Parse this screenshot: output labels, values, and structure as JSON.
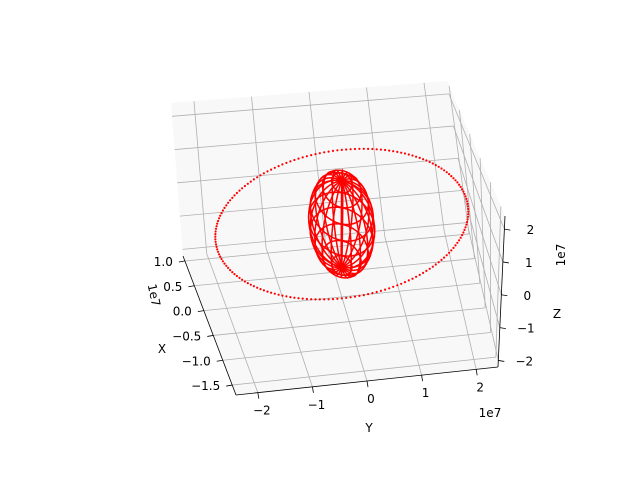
{
  "chart_data": {
    "type": "scatter",
    "projection": "3d",
    "grid": true,
    "axes": {
      "x": {
        "label": "X",
        "offset_text": "1e7",
        "range": [
          -1.7,
          1.1
        ],
        "ticks": [
          -1.5,
          -1.0,
          -0.5,
          0.0,
          0.5,
          1.0
        ],
        "tick_labels": [
          "−1.5",
          "−1.0",
          "−0.5",
          "0.0",
          "0.5",
          "1.0"
        ]
      },
      "y": {
        "label": "Y",
        "offset_text": "1e7",
        "range": [
          -2.4,
          2.4
        ],
        "ticks": [
          -2,
          -1,
          0,
          1,
          2
        ],
        "tick_labels": [
          "−2",
          "−1",
          "0",
          "1",
          "2"
        ]
      },
      "z": {
        "label": "Z",
        "offset_text": "1e7",
        "range": [
          -2.2,
          2.4
        ],
        "ticks": [
          -2,
          -1,
          0,
          1,
          2
        ],
        "tick_labels": [
          "−2",
          "−1",
          "0",
          "1",
          "2"
        ]
      }
    },
    "series": [
      {
        "kind": "scatter",
        "description_color": "red",
        "color": "#ff0000",
        "orbit": {
          "radius": 2.2,
          "center": [
            0,
            0,
            0
          ],
          "tilt_deg": 90,
          "points": 180
        }
      },
      {
        "kind": "wireframe-sphere",
        "color": "#ff0000",
        "sphere": {
          "radius": 0.64,
          "center": [
            0,
            0,
            0
          ],
          "meridians": 20,
          "parallels": 10
        }
      }
    ]
  }
}
